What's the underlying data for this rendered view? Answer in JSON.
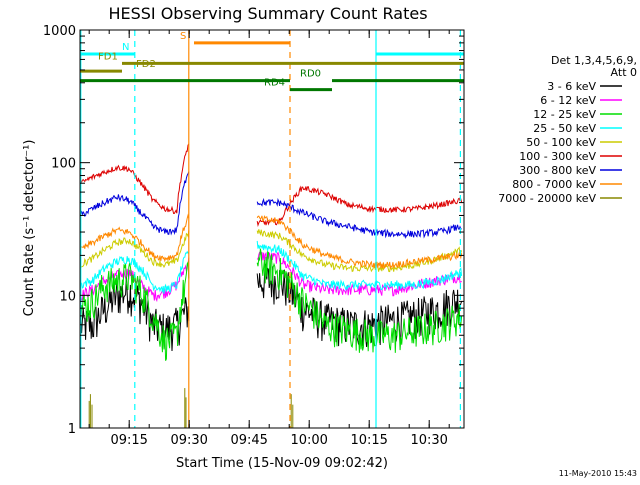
{
  "chart_data": {
    "type": "line",
    "title": "HESSI Observing Summary Count Rates",
    "xlabel": "Start Time (15-Nov-09 09:02:42)",
    "ylabel": "Count Rate (s⁻¹ detector⁻¹)",
    "x_unit": "minutes after 09:02:42 UT",
    "xlim": [
      0,
      96
    ],
    "ylim": [
      1,
      1000
    ],
    "y_scale": "log",
    "grid": false,
    "x_ticks": [
      {
        "label": "09:15",
        "value": 12.3
      },
      {
        "label": "09:30",
        "value": 27.3
      },
      {
        "label": "09:45",
        "value": 42.3
      },
      {
        "label": "10:00",
        "value": 57.3
      },
      {
        "label": "10:15",
        "value": 72.3
      },
      {
        "label": "10:30",
        "value": 87.3
      }
    ],
    "y_ticks": [
      {
        "label": "1",
        "value": 1
      },
      {
        "label": "10",
        "value": 10
      },
      {
        "label": "100",
        "value": 100
      },
      {
        "label": "1000",
        "value": 1000
      }
    ],
    "legend": {
      "placement": "right",
      "header": [
        "Det 1,3,4,5,6,9,",
        "Att 0"
      ]
    },
    "series": [
      {
        "name": "3 - 6 keV",
        "color": "#000000",
        "first": [
          6,
          6,
          8,
          10,
          11,
          9,
          6,
          5.5,
          6,
          8
        ],
        "second": [
          13,
          13,
          8,
          6.5,
          6,
          6,
          6.5,
          7,
          8,
          9.5
        ],
        "noise": 0.35
      },
      {
        "name": "6 - 12 keV",
        "color": "#ff00ff",
        "first": [
          10,
          11,
          13,
          14,
          15,
          12,
          10,
          10.5,
          12,
          18
        ],
        "second": [
          20,
          19,
          12,
          11,
          11,
          11,
          11,
          12,
          13,
          14
        ],
        "noise": 0.1
      },
      {
        "name": "12 - 25 keV",
        "color": "#00dd00",
        "first": [
          8,
          9,
          12,
          13,
          14,
          11,
          7,
          4.5,
          5,
          15
        ],
        "second": [
          18,
          15,
          9,
          6,
          5.5,
          5,
          5,
          5.5,
          6,
          7
        ],
        "noise": 0.3
      },
      {
        "name": "25 - 50 keV",
        "color": "#00ffff",
        "first": [
          12,
          13,
          16,
          18,
          19,
          16,
          12,
          11,
          12,
          22
        ],
        "second": [
          24,
          22,
          14,
          12,
          12,
          12,
          12,
          12,
          13,
          15
        ],
        "noise": 0.08
      },
      {
        "name": "50 - 100 keV",
        "color": "#cccc00",
        "first": [
          17,
          19,
          22,
          25,
          26,
          22,
          18,
          17,
          18,
          30
        ],
        "second": [
          30,
          28,
          20,
          17,
          16,
          16,
          16,
          17,
          19,
          22
        ],
        "noise": 0.06
      },
      {
        "name": "100 - 300 keV",
        "color": "#dd0000",
        "first": [
          70,
          78,
          85,
          92,
          90,
          70,
          52,
          45,
          43,
          140
        ],
        "second": [
          35,
          36,
          65,
          58,
          48,
          45,
          44,
          45,
          48,
          52
        ],
        "noise": 0.05
      },
      {
        "name": "300 - 800 keV",
        "color": "#0000dd",
        "first": [
          40,
          45,
          50,
          55,
          52,
          42,
          33,
          30,
          31,
          90
        ],
        "second": [
          50,
          50,
          42,
          36,
          33,
          30,
          29,
          29,
          30,
          33
        ],
        "noise": 0.06
      },
      {
        "name": "800 - 7000 keV",
        "color": "#ff8800",
        "first": [
          22,
          25,
          28,
          31,
          30,
          25,
          20,
          19,
          20,
          40
        ],
        "second": [
          38,
          36,
          24,
          20,
          18,
          17,
          17,
          18,
          19,
          20
        ],
        "noise": 0.06
      },
      {
        "name": "7000 - 20000 keV",
        "color": "#888800",
        "first": [],
        "second": [],
        "noise": 0
      }
    ],
    "gaps": [
      {
        "from": 0,
        "to": 0.2
      },
      {
        "from": 27.2,
        "to": 44.3
      },
      {
        "from": 56.5,
        "to": 56.6
      },
      {
        "from": 95.4,
        "to": 96
      }
    ],
    "vertical_markers": [
      {
        "x": 13.7,
        "color": "#00ffff",
        "style": "dashed"
      },
      {
        "x": 74.0,
        "color": "#00ffff",
        "style": "solid"
      },
      {
        "x": 95.1,
        "color": "#00ffff",
        "style": "dashed"
      },
      {
        "x": 27.2,
        "color": "#ff8800",
        "style": "solid"
      },
      {
        "x": 52.5,
        "color": "#ff8800",
        "style": "dashed"
      },
      {
        "x": 0.2,
        "color": "#00ffff",
        "style": "solid"
      }
    ],
    "flags": [
      {
        "label": "N",
        "color": "#00ffff",
        "y": 660,
        "segments": [
          [
            0,
            13.7
          ],
          [
            74.0,
            96
          ]
        ],
        "label_x": 10.5
      },
      {
        "label": "S",
        "color": "#ff8800",
        "y": 800,
        "segments": [
          [
            28.5,
            52.5
          ]
        ],
        "label_x": 25.0
      },
      {
        "label": "FD1",
        "color": "#888800",
        "y": 560,
        "segments": [
          [
            10.5,
            96
          ]
        ],
        "label_x": 4.5
      },
      {
        "label": "FD2",
        "color": "#888800",
        "y": 490,
        "segments": [
          [
            0,
            10.5
          ]
        ],
        "label_x": 14.0
      },
      {
        "label": "RD0",
        "color": "#007700",
        "y": 415,
        "segments": [
          [
            0,
            52.5
          ],
          [
            63,
            96
          ]
        ],
        "label_x": 55.0
      },
      {
        "label": "RD4",
        "color": "#007700",
        "y": 355,
        "segments": [
          [
            52.5,
            63
          ]
        ],
        "label_x": 46.0
      }
    ]
  },
  "footer": {
    "timestamp": "11-May-2010 15:43"
  }
}
